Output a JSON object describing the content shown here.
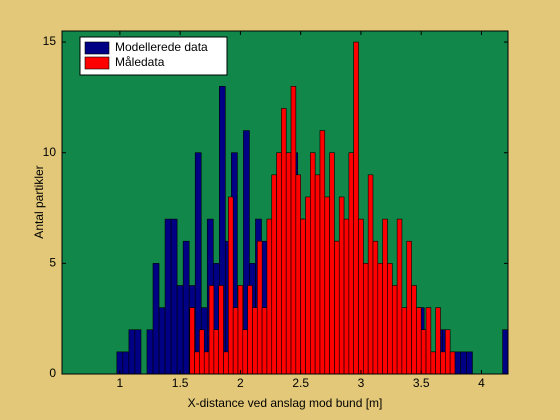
{
  "chart_data": {
    "type": "histogram",
    "xlabel": "X-distance ved anslag mod bund [m]",
    "ylabel": "Antal partikler",
    "xlim": [
      0.52,
      4.22
    ],
    "ylim": [
      0,
      15.5
    ],
    "xticks": [
      1,
      1.5,
      2,
      2.5,
      3,
      3.5,
      4
    ],
    "yticks": [
      0,
      5,
      10,
      15
    ],
    "legend": "northwest",
    "background": "#11874a",
    "series": [
      {
        "name": "Modellerede data",
        "color": "#000085",
        "bins": [
          0.975,
          1.025,
          1.075,
          1.125,
          1.175,
          1.225,
          1.275,
          1.325,
          1.375,
          1.425,
          1.475,
          1.525,
          1.575,
          1.625,
          1.675,
          1.725,
          1.775,
          1.825,
          1.875,
          1.925,
          1.975,
          2.025,
          2.075,
          2.125,
          2.175,
          2.225,
          2.275,
          2.325,
          2.375,
          2.425,
          2.475,
          2.525,
          2.575,
          2.625,
          2.675,
          2.725,
          2.775,
          2.825,
          2.875,
          2.925,
          2.975,
          3.025,
          3.075,
          3.125,
          3.175,
          3.225,
          3.275,
          3.325,
          3.375,
          3.425,
          3.475,
          3.525,
          3.575,
          3.625,
          3.675,
          3.725,
          3.775,
          3.825,
          3.875,
          3.925,
          3.975,
          4.025,
          4.075,
          4.125,
          4.175,
          4.225
        ],
        "values": [
          1,
          1,
          2,
          2,
          0,
          2,
          5,
          3,
          7,
          7,
          4,
          6,
          4,
          10,
          3,
          7,
          5,
          13,
          6,
          10,
          2,
          11,
          5,
          7,
          6,
          4,
          9,
          7,
          6,
          10,
          7,
          6,
          4,
          9,
          7,
          4,
          6,
          5,
          4,
          6,
          5,
          5,
          3,
          4,
          4,
          2,
          3,
          2,
          3,
          2,
          3,
          1,
          1,
          2,
          2,
          1,
          1,
          1,
          1,
          0,
          0,
          0,
          0,
          0,
          2
        ]
      },
      {
        "name": "Måledata",
        "color": "#ff0000",
        "bins": [
          1.58,
          1.62,
          1.66,
          1.7,
          1.74,
          1.78,
          1.82,
          1.86,
          1.9,
          1.94,
          1.98,
          2.02,
          2.06,
          2.1,
          2.14,
          2.18,
          2.22,
          2.26,
          2.3,
          2.34,
          2.38,
          2.42,
          2.46,
          2.5,
          2.54,
          2.58,
          2.62,
          2.66,
          2.7,
          2.74,
          2.78,
          2.82,
          2.86,
          2.9,
          2.94,
          2.98,
          3.02,
          3.06,
          3.1,
          3.14,
          3.18,
          3.22,
          3.26,
          3.3,
          3.34,
          3.38,
          3.42,
          3.46,
          3.5,
          3.54,
          3.58,
          3.62,
          3.66,
          3.7,
          3.74,
          3.78
        ],
        "values": [
          3,
          1,
          2,
          1,
          4,
          2,
          4,
          1,
          8,
          3,
          4,
          2,
          4,
          3,
          6,
          3,
          7,
          9,
          10,
          12,
          10,
          13,
          9,
          7,
          8,
          10,
          9,
          11,
          8,
          10,
          6,
          8,
          7,
          10,
          15,
          7,
          5,
          9,
          6,
          5,
          7,
          5,
          4,
          7,
          3,
          6,
          4,
          3,
          2,
          3,
          1,
          3,
          1,
          2,
          1
        ]
      }
    ]
  }
}
